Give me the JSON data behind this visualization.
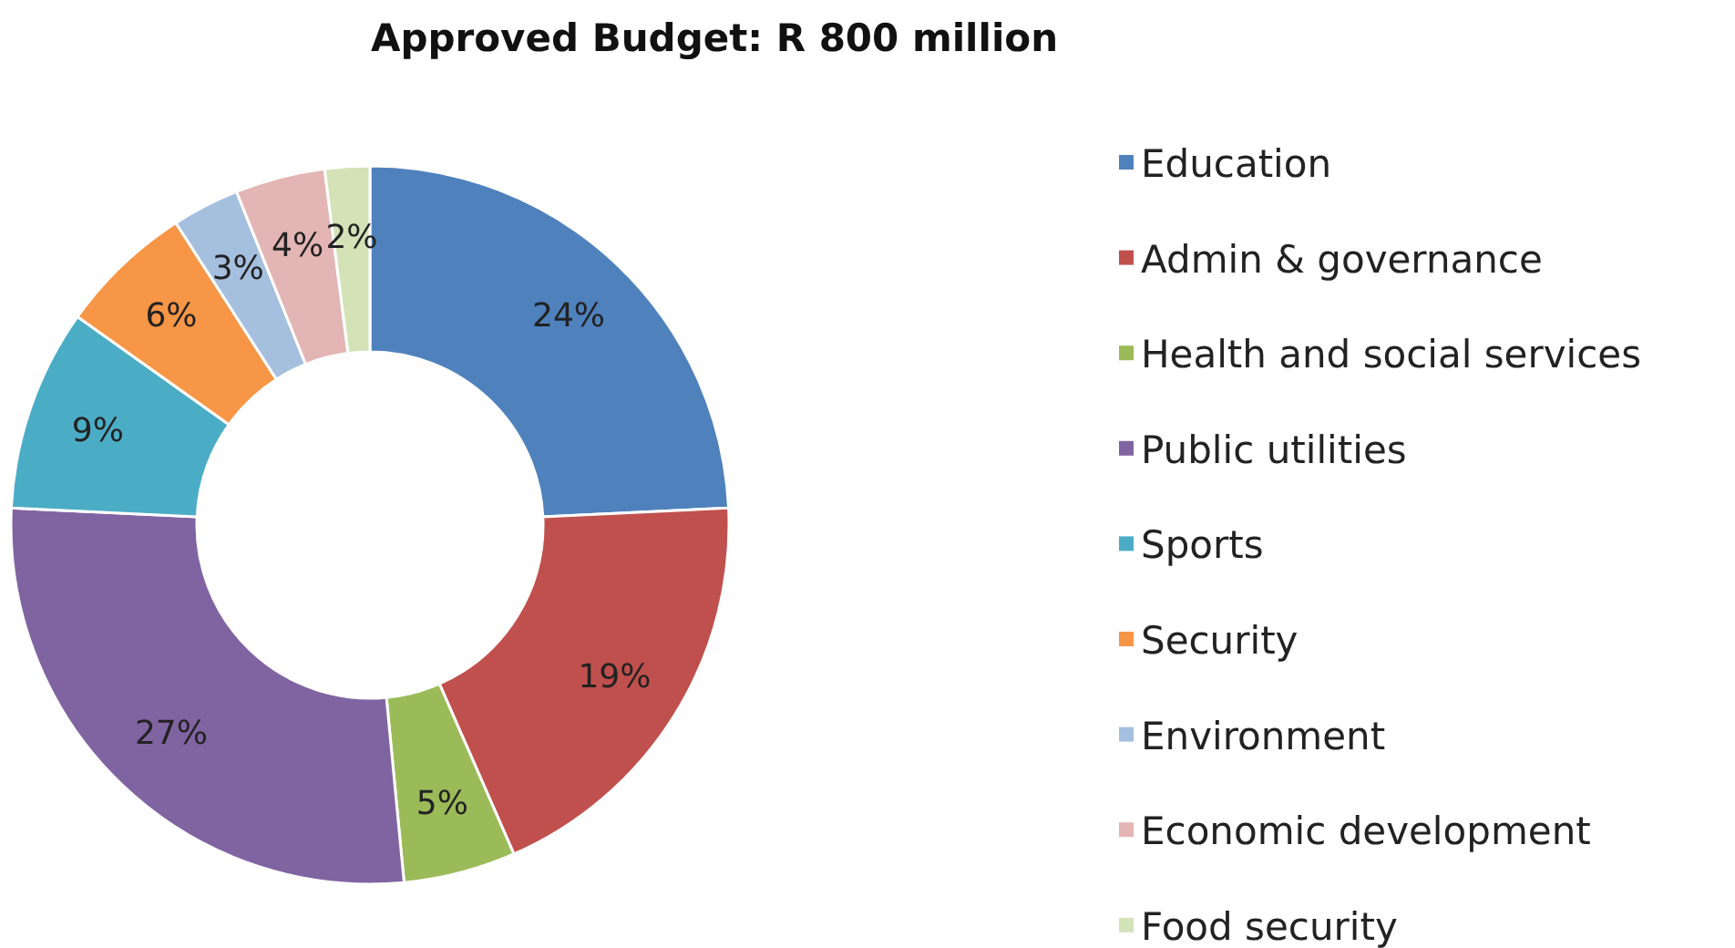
{
  "chart_data": {
    "type": "donut",
    "title": "Approved Budget: R 800 million",
    "categories": [
      "Education",
      "Admin & governance",
      "Health and social services",
      "Public utilities",
      "Sports",
      "Security",
      "Environment",
      "Economic development",
      "Food security"
    ],
    "values": [
      24,
      19,
      5,
      27,
      9,
      6,
      3,
      4,
      2
    ],
    "value_labels": [
      "24%",
      "19%",
      "5%",
      "27%",
      "9%",
      "6%",
      "3%",
      "4%",
      "2%"
    ],
    "colors": [
      "#4f81bd",
      "#c0504d",
      "#9bbb59",
      "#8064a2",
      "#4bacc6",
      "#f79646",
      "#a5bfdf",
      "#e3b5b4",
      "#d4e2b8"
    ],
    "legend": "right"
  }
}
